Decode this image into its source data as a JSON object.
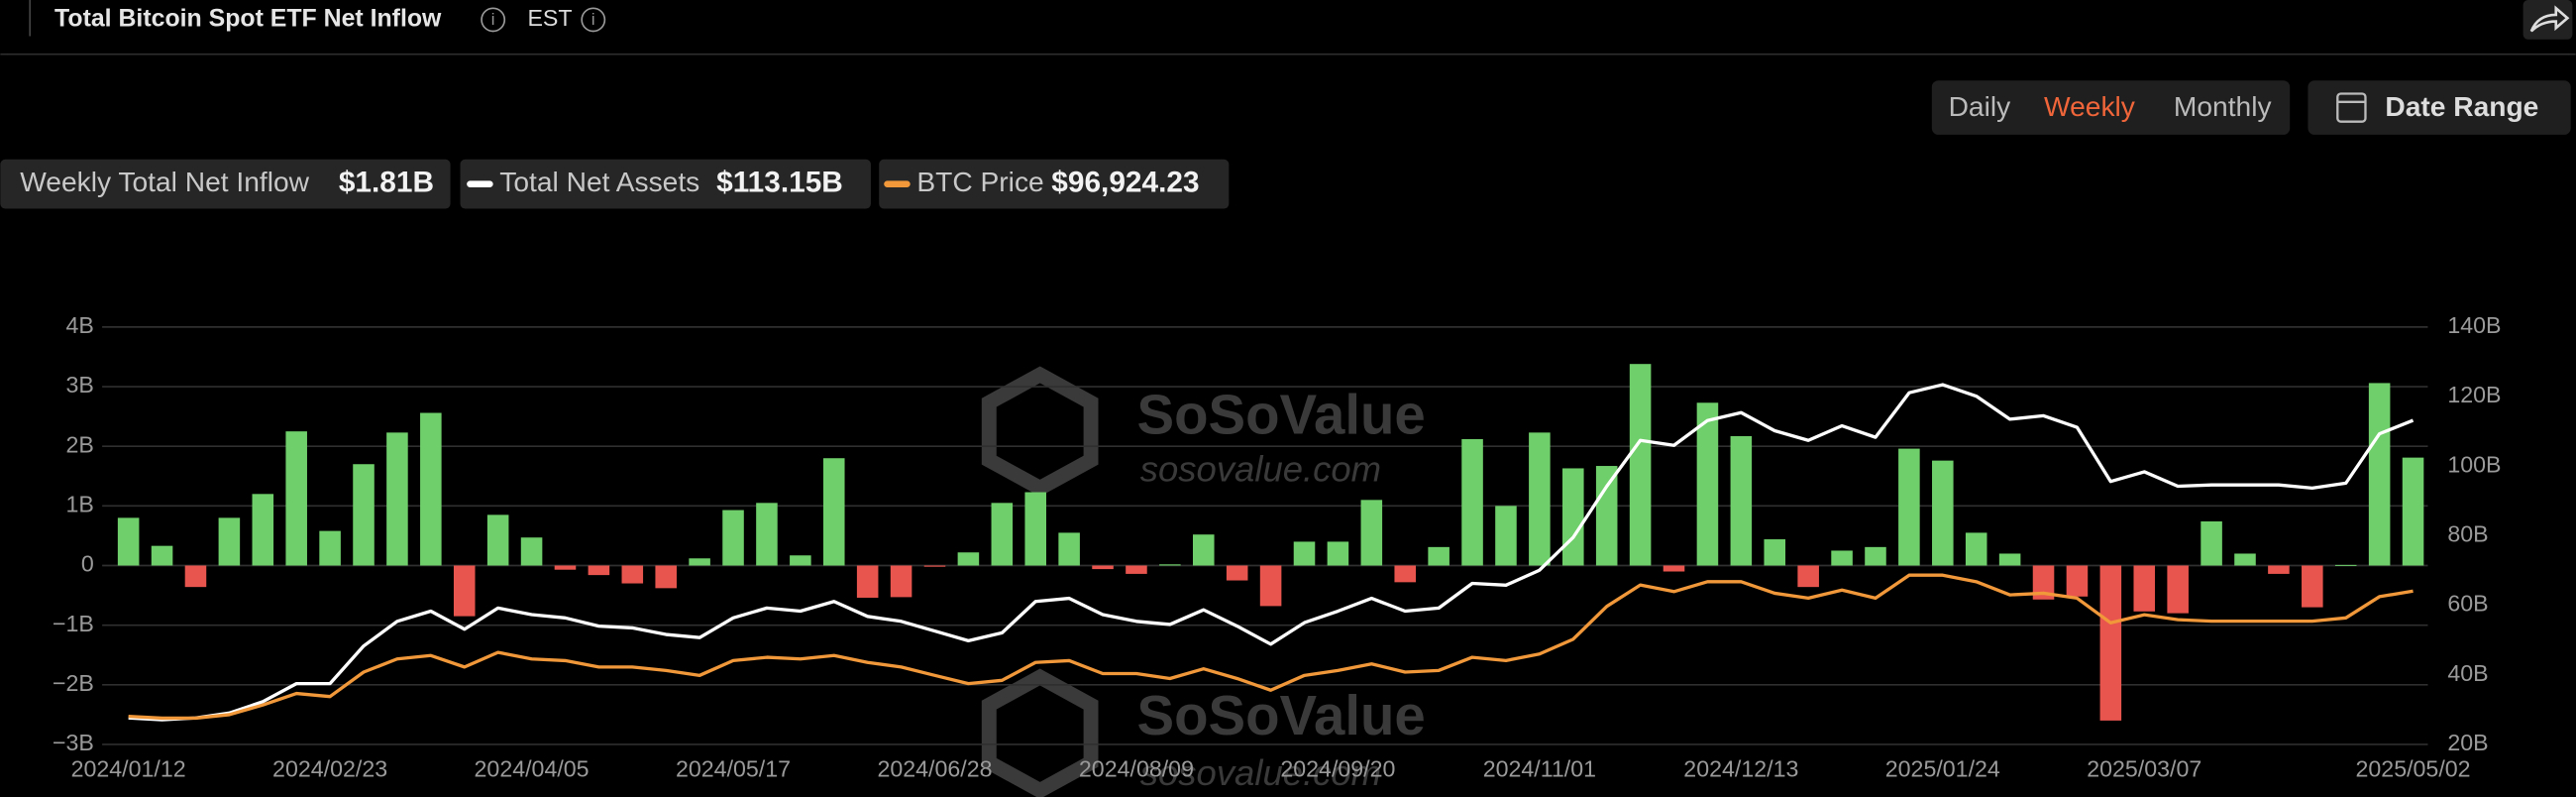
{
  "header": {
    "title": "Total Bitcoin Spot ETF Net Inflow",
    "timezone": "EST",
    "intervals": [
      "Daily",
      "Weekly",
      "Monthly"
    ],
    "active_interval": "Weekly",
    "date_range": "Date Range"
  },
  "watermark": {
    "brand": "SoSoValue",
    "url": "sosovalue.com"
  },
  "chart_data": {
    "type": "bar",
    "categories": [
      "2024/01/12",
      null,
      null,
      null,
      null,
      null,
      "2024/02/23",
      null,
      null,
      null,
      null,
      null,
      "2024/04/05",
      null,
      null,
      null,
      null,
      null,
      "2024/05/17",
      null,
      null,
      null,
      null,
      null,
      "2024/06/28",
      null,
      null,
      null,
      null,
      null,
      "2024/08/09",
      null,
      null,
      null,
      null,
      null,
      "2024/09/20",
      null,
      null,
      null,
      null,
      null,
      "2024/11/01",
      null,
      null,
      null,
      null,
      null,
      "2024/12/13",
      null,
      null,
      null,
      null,
      null,
      "2025/01/24",
      null,
      null,
      null,
      null,
      null,
      "2025/03/07",
      null,
      null,
      null,
      null,
      null,
      null,
      null,
      "2025/05/02"
    ],
    "series": [
      {
        "name": "Weekly Total Net Inflow",
        "type": "bar",
        "color": "#6fcf6a",
        "negative_color": "#e8554e",
        "values": [
          0.8,
          0.33,
          -0.36,
          0.8,
          1.2,
          2.25,
          0.58,
          1.7,
          2.23,
          2.56,
          -0.85,
          0.85,
          0.47,
          -0.07,
          -0.16,
          -0.3,
          -0.38,
          0.12,
          0.93,
          1.05,
          0.17,
          1.8,
          -0.54,
          -0.53,
          -0.02,
          0.22,
          1.05,
          1.23,
          0.55,
          -0.06,
          -0.14,
          0.02,
          0.52,
          -0.25,
          -0.68,
          0.4,
          0.4,
          1.1,
          -0.28,
          0.31,
          2.12,
          1.0,
          2.23,
          1.63,
          1.67,
          3.38,
          -0.1,
          2.73,
          2.17,
          0.44,
          -0.36,
          0.25,
          0.31,
          1.96,
          1.76,
          0.55,
          0.2,
          -0.57,
          -0.52,
          -2.6,
          -0.77,
          -0.8,
          0.74,
          0.2,
          -0.14,
          -0.7,
          0.01,
          3.06,
          1.81
        ]
      },
      {
        "name": "Total Net Assets",
        "type": "line",
        "axis": "y2",
        "color": "#ffffff",
        "values": [
          27.6,
          27.1,
          27.6,
          29,
          32.3,
          37.5,
          37.5,
          48.3,
          55.4,
          58.3,
          53.1,
          59.2,
          57.3,
          56.4,
          54,
          53.5,
          51.6,
          50.7,
          56.4,
          59.2,
          58.3,
          61.1,
          56.8,
          55.4,
          52.6,
          49.8,
          52.1,
          61.1,
          62,
          57.3,
          55.4,
          54.5,
          58.7,
          54,
          48.8,
          55,
          58.3,
          62,
          58.3,
          59.2,
          66.3,
          65.8,
          70.1,
          79.5,
          94.2,
          107.4,
          106,
          113.1,
          115.4,
          110.2,
          107.4,
          111.6,
          108.3,
          121.1,
          123.4,
          120.1,
          113.5,
          114.5,
          111.2,
          95.6,
          98.4,
          94.2,
          94.6,
          94.6,
          94.6,
          93.7,
          95.1,
          109.3,
          113.15
        ]
      },
      {
        "name": "BTC Price",
        "type": "line",
        "axis": "hidden",
        "color": "#f0983a",
        "values": [
          41500,
          40700,
          40700,
          42200,
          46500,
          51600,
          50200,
          61100,
          66900,
          68400,
          63300,
          69800,
          66900,
          66200,
          63300,
          63300,
          61800,
          59600,
          66200,
          67600,
          66900,
          68400,
          65400,
          63300,
          59600,
          56000,
          57400,
          65400,
          66200,
          60400,
          60400,
          58200,
          62500,
          58200,
          53100,
          59600,
          61800,
          64700,
          61100,
          61800,
          67600,
          66200,
          69100,
          75600,
          90200,
          99600,
          96700,
          101100,
          101100,
          96000,
          93800,
          97400,
          93800,
          104000,
          104000,
          101100,
          95300,
          96000,
          93800,
          82900,
          86500,
          84300,
          83600,
          83600,
          83600,
          83600,
          85100,
          94500,
          96924.23
        ]
      }
    ],
    "legend_values": [
      "$1.81B",
      "$113.15B",
      "$96,924.23"
    ],
    "ylim": [
      -3,
      4
    ],
    "yticks": [
      {
        "value": 4,
        "label": "4B"
      },
      {
        "value": 3,
        "label": "3B"
      },
      {
        "value": 2,
        "label": "2B"
      },
      {
        "value": 1,
        "label": "1B"
      },
      0,
      {
        "value": -1,
        "label": "−1B"
      },
      {
        "value": -2,
        "label": "−2B"
      },
      {
        "value": -3,
        "label": "−3B"
      }
    ],
    "y2lim": [
      20,
      140
    ],
    "y2ticks": [
      {
        "value": 140,
        "label": "140B"
      },
      {
        "value": 120,
        "label": "120B"
      },
      {
        "value": 100,
        "label": "100B"
      },
      {
        "value": 80,
        "label": "80B"
      },
      {
        "value": 60,
        "label": "60B"
      },
      {
        "value": 40,
        "label": "40B"
      },
      {
        "value": 20,
        "label": "20B"
      }
    ],
    "grid": true
  }
}
